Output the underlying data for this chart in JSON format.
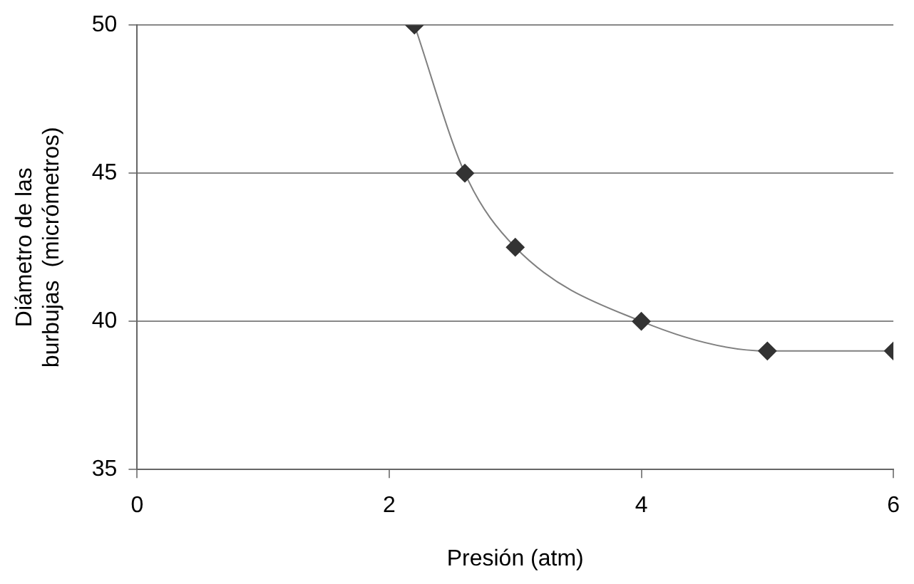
{
  "chart_data": {
    "type": "line",
    "xlabel": "Presión (atm)",
    "ylabel": "Diámetro de las\nburbujas  (micrómetros)",
    "x": [
      2.2,
      2.6,
      3,
      4,
      5,
      6
    ],
    "series": [
      {
        "color": "#808080",
        "values": [
          50,
          45,
          42.5,
          40,
          39,
          39
        ]
      }
    ],
    "xlim": [
      0,
      6
    ],
    "xticks": [
      0,
      2,
      4,
      6
    ],
    "ylim": [
      35,
      50
    ],
    "yticks": [
      35,
      40,
      45,
      50
    ],
    "grid": "y",
    "legend": false,
    "marker": "diamond",
    "line_style": "solid"
  }
}
